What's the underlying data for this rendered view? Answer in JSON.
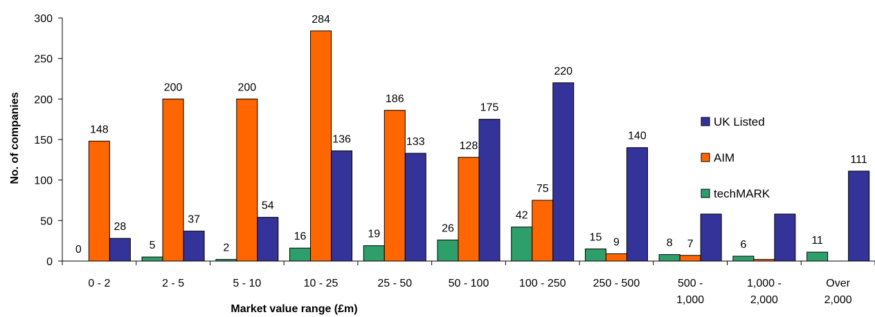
{
  "chart_data": {
    "type": "bar",
    "title": "",
    "xlabel": "Market value range (£m)",
    "ylabel": "No. of companies",
    "ylim": [
      0,
      300
    ],
    "yticks": [
      0,
      50,
      100,
      150,
      200,
      250,
      300
    ],
    "grid": false,
    "legend_position": "right",
    "categories": [
      [
        "0 - 2"
      ],
      [
        "2 - 5"
      ],
      [
        "5 - 10"
      ],
      [
        "10 - 25"
      ],
      [
        "25 - 50"
      ],
      [
        "50 - 100"
      ],
      [
        "100 - 250"
      ],
      [
        "250 - 500"
      ],
      [
        "500 -",
        "1,000"
      ],
      [
        "1,000 -",
        "2,000"
      ],
      [
        "Over",
        "2,000"
      ]
    ],
    "series": [
      {
        "name": "techMARK",
        "color": "#2e9e6a",
        "values": [
          0,
          5,
          2,
          16,
          19,
          26,
          42,
          15,
          8,
          6,
          11
        ]
      },
      {
        "name": "AIM",
        "color": "#ff6600",
        "values": [
          148,
          200,
          200,
          284,
          186,
          128,
          75,
          9,
          7,
          2,
          0
        ]
      },
      {
        "name": "UK Listed",
        "color": "#333399",
        "values": [
          28,
          37,
          54,
          136,
          133,
          175,
          220,
          140,
          58,
          58,
          111
        ]
      }
    ],
    "data_labels": {
      "techMARK": [
        "0",
        "5",
        "2",
        "16",
        "19",
        "26",
        "42",
        "15",
        "8",
        "6",
        "11"
      ],
      "AIM": [
        "148",
        "200",
        "200",
        "284",
        "186",
        "128",
        "75",
        "9",
        "7",
        "",
        ""
      ],
      "UK Listed": [
        "28",
        "37",
        "54",
        "136",
        "133",
        "175",
        "220",
        "140",
        "",
        "",
        "111"
      ]
    },
    "legend_order": [
      "UK Listed",
      "AIM",
      "techMARK"
    ]
  }
}
